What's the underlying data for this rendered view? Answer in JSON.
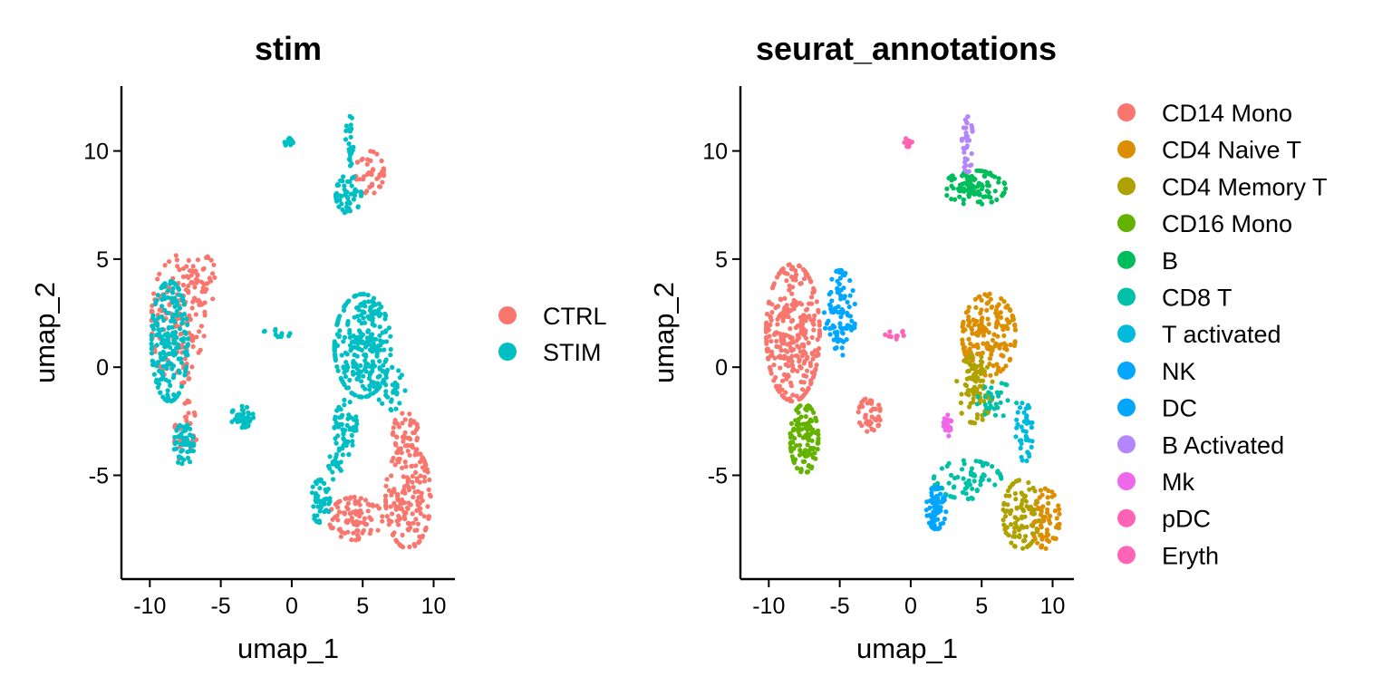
{
  "chart_data": [
    {
      "type": "scatter",
      "title": "stim",
      "xlabel": "umap_1",
      "ylabel": "umap_2",
      "xlim": [
        -12,
        11.5
      ],
      "ylim": [
        -9.8,
        13
      ],
      "xticks": [
        -10,
        -5,
        0,
        5,
        10
      ],
      "xtick_labels": [
        "-10",
        "-5",
        "0",
        "5",
        "10"
      ],
      "yticks": [
        -5,
        0,
        5,
        10
      ],
      "ytick_labels": [
        "-5",
        "0",
        "5",
        "10"
      ],
      "grid": false,
      "legend_position": "right",
      "series": [
        {
          "name": "CTRL",
          "color": "#F8766D",
          "clusters": [
            {
              "cx": -8.0,
              "cy": 2.2,
              "rx": 1.9,
              "ry": 3.0,
              "n": 160
            },
            {
              "cx": -6.2,
              "cy": 4.0,
              "rx": 0.9,
              "ry": 1.2,
              "n": 35
            },
            {
              "cx": -7.5,
              "cy": -3.0,
              "rx": 0.8,
              "ry": 1.5,
              "n": 30
            },
            {
              "cx": 5.5,
              "cy": 9.0,
              "rx": 1.0,
              "ry": 1.0,
              "n": 40
            },
            {
              "cx": 8.2,
              "cy": -6.0,
              "rx": 1.6,
              "ry": 2.4,
              "n": 180
            },
            {
              "cx": 4.5,
              "cy": -7.0,
              "rx": 1.9,
              "ry": 1.0,
              "n": 90
            },
            {
              "cx": 8.0,
              "cy": -3.0,
              "rx": 0.9,
              "ry": 0.9,
              "n": 40
            }
          ]
        },
        {
          "name": "STIM",
          "color": "#00BFC4",
          "clusters": [
            {
              "cx": -8.6,
              "cy": 1.2,
              "rx": 1.3,
              "ry": 2.8,
              "n": 200
            },
            {
              "cx": -7.6,
              "cy": -3.6,
              "rx": 0.7,
              "ry": 1.0,
              "n": 55
            },
            {
              "cx": -3.5,
              "cy": -2.3,
              "rx": 0.8,
              "ry": 0.5,
              "n": 45
            },
            {
              "cx": 4.0,
              "cy": 8.0,
              "rx": 0.9,
              "ry": 0.9,
              "n": 50
            },
            {
              "cx": 4.1,
              "cy": 10.5,
              "rx": 0.3,
              "ry": 1.2,
              "n": 25
            },
            {
              "cx": -0.2,
              "cy": 10.4,
              "rx": 0.3,
              "ry": 0.2,
              "n": 12
            },
            {
              "cx": 5.0,
              "cy": 1.0,
              "rx": 2.0,
              "ry": 2.4,
              "n": 280
            },
            {
              "cx": 3.8,
              "cy": -2.8,
              "rx": 0.8,
              "ry": 1.3,
              "n": 60
            },
            {
              "cx": 2.0,
              "cy": -6.2,
              "rx": 0.7,
              "ry": 1.0,
              "n": 50
            },
            {
              "cx": 7.0,
              "cy": -1.0,
              "rx": 1.0,
              "ry": 1.0,
              "n": 35
            },
            {
              "cx": -1.0,
              "cy": 1.6,
              "rx": 1.2,
              "ry": 0.2,
              "n": 12
            },
            {
              "cx": 3.0,
              "cy": -4.6,
              "rx": 0.5,
              "ry": 0.6,
              "n": 20
            }
          ]
        }
      ]
    },
    {
      "type": "scatter",
      "title": "seurat_annotations",
      "xlabel": "umap_1",
      "ylabel": "umap_2",
      "xlim": [
        -12,
        11.5
      ],
      "ylim": [
        -9.8,
        13
      ],
      "xticks": [
        -10,
        -5,
        0,
        5,
        10
      ],
      "xtick_labels": [
        "-10",
        "-5",
        "0",
        "5",
        "10"
      ],
      "yticks": [
        -5,
        0,
        5,
        10
      ],
      "ytick_labels": [
        "-5",
        "0",
        "5",
        "10"
      ],
      "grid": false,
      "legend_position": "right",
      "series": [
        {
          "name": "CD14 Mono",
          "color": "#F8766D",
          "clusters": [
            {
              "cx": -8.3,
              "cy": 1.6,
              "rx": 1.9,
              "ry": 3.2,
              "n": 320
            },
            {
              "cx": -2.9,
              "cy": -2.2,
              "rx": 0.8,
              "ry": 0.8,
              "n": 45
            }
          ]
        },
        {
          "name": "CD4 Naive T",
          "color": "#DB8E00",
          "clusters": [
            {
              "cx": 5.5,
              "cy": 1.5,
              "rx": 1.9,
              "ry": 1.9,
              "n": 180
            },
            {
              "cx": 9.5,
              "cy": -7.0,
              "rx": 1.0,
              "ry": 1.4,
              "n": 70
            }
          ]
        },
        {
          "name": "CD4 Memory T",
          "color": "#AEA200",
          "clusters": [
            {
              "cx": 4.5,
              "cy": -1.0,
              "rx": 1.3,
              "ry": 1.6,
              "n": 90
            },
            {
              "cx": 7.8,
              "cy": -6.8,
              "rx": 1.3,
              "ry": 1.6,
              "n": 90
            }
          ]
        },
        {
          "name": "CD16 Mono",
          "color": "#64B200",
          "clusters": [
            {
              "cx": -7.5,
              "cy": -3.3,
              "rx": 1.0,
              "ry": 1.6,
              "n": 120
            }
          ]
        },
        {
          "name": "B",
          "color": "#00BD5C",
          "clusters": [
            {
              "cx": 4.5,
              "cy": 8.3,
              "rx": 2.2,
              "ry": 0.8,
              "n": 110
            }
          ]
        },
        {
          "name": "CD8 T",
          "color": "#00C1A7",
          "clusters": [
            {
              "cx": 4.0,
              "cy": -5.2,
              "rx": 2.4,
              "ry": 0.9,
              "n": 70
            },
            {
              "cx": 6.0,
              "cy": -1.5,
              "rx": 1.5,
              "ry": 0.8,
              "n": 30
            }
          ]
        },
        {
          "name": "T activated",
          "color": "#00BADE",
          "clusters": [
            {
              "cx": 8.0,
              "cy": -3.0,
              "rx": 0.6,
              "ry": 1.4,
              "n": 40
            }
          ]
        },
        {
          "name": "NK",
          "color": "#00A6FF",
          "clusters": [
            {
              "cx": 1.8,
              "cy": -6.5,
              "rx": 0.7,
              "ry": 1.0,
              "n": 70
            }
          ]
        },
        {
          "name": "DC",
          "color": "#00A6FF",
          "clusters": [
            {
              "cx": -5.0,
              "cy": 2.5,
              "rx": 1.1,
              "ry": 2.0,
              "n": 90
            }
          ]
        },
        {
          "name": "B Activated",
          "color": "#B385FF",
          "clusters": [
            {
              "cx": 4.0,
              "cy": 10.3,
              "rx": 0.4,
              "ry": 1.3,
              "n": 35
            }
          ]
        },
        {
          "name": "Mk",
          "color": "#EF67EB",
          "clusters": [
            {
              "cx": 2.6,
              "cy": -2.7,
              "rx": 0.3,
              "ry": 0.5,
              "n": 20
            }
          ]
        },
        {
          "name": "pDC",
          "color": "#FF63B6",
          "clusters": [
            {
              "cx": -0.2,
              "cy": 10.4,
              "rx": 0.3,
              "ry": 0.2,
              "n": 12
            }
          ]
        },
        {
          "name": "Eryth",
          "color": "#FF63B6",
          "clusters": [
            {
              "cx": -1.0,
              "cy": 1.5,
              "rx": 0.8,
              "ry": 0.2,
              "n": 10
            }
          ]
        }
      ]
    }
  ]
}
